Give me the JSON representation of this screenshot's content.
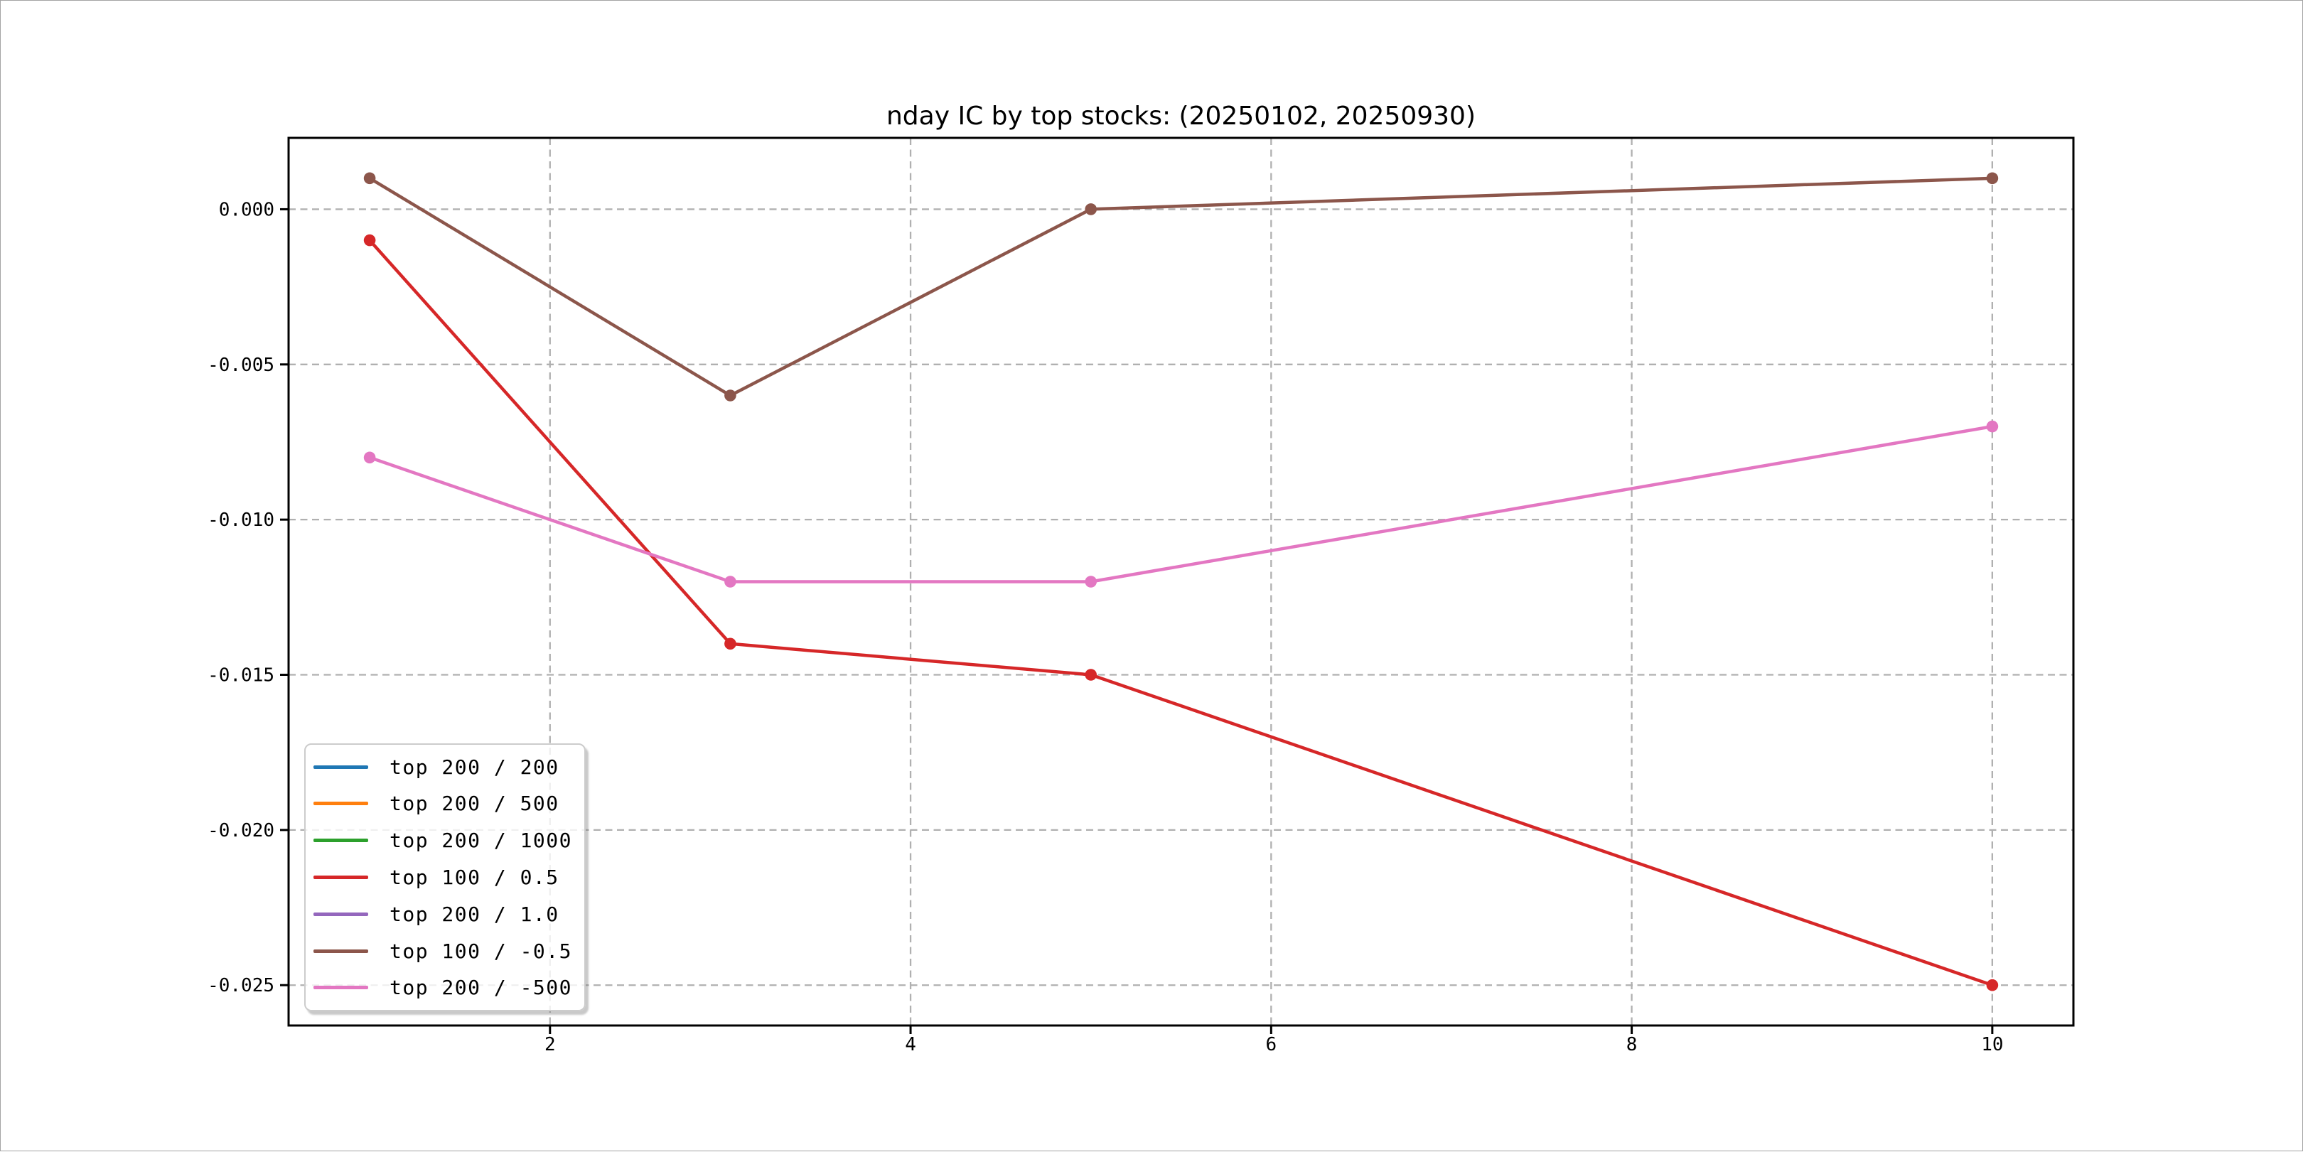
{
  "chart_data": {
    "type": "line",
    "title": "nday IC by top stocks: (20250102, 20250930)",
    "x": [
      1,
      3,
      5,
      10
    ],
    "x_ticks": [
      2,
      4,
      6,
      8,
      10
    ],
    "x_tick_labels": [
      "2",
      "4",
      "6",
      "8",
      "10"
    ],
    "y_ticks": [
      0.0,
      -0.005,
      -0.01,
      -0.015,
      -0.02,
      -0.025
    ],
    "y_tick_labels": [
      "0.000",
      "-0.005",
      "-0.010",
      "-0.015",
      "-0.020",
      "-0.025"
    ],
    "xlim": [
      0.55,
      10.45
    ],
    "ylim": [
      -0.0263,
      0.0023
    ],
    "grid": true,
    "grid_style": "dashed",
    "legend_position": "lower left",
    "marker": "circle",
    "colors": {
      "axis": "#000000",
      "grid": "#b0b0b0",
      "background": "#ffffff",
      "legend_border": "#cccccc",
      "legend_background": "rgba(255,255,255,0.8)"
    },
    "series": [
      {
        "name": "top 200 / 200",
        "color": "#1f77b4",
        "visible": false,
        "values": []
      },
      {
        "name": "top 200 / 500",
        "color": "#ff7f0e",
        "visible": false,
        "values": []
      },
      {
        "name": "top 200 / 1000",
        "color": "#2ca02c",
        "visible": false,
        "values": []
      },
      {
        "name": "top 100 / 0.5",
        "color": "#d62728",
        "visible": true,
        "values": [
          -0.001,
          -0.014,
          -0.015,
          -0.025
        ]
      },
      {
        "name": "top 200 / 1.0",
        "color": "#9467bd",
        "visible": false,
        "values": []
      },
      {
        "name": "top 100 / -0.5",
        "color": "#8c564b",
        "visible": true,
        "values": [
          0.001,
          -0.006,
          0.0,
          0.001
        ]
      },
      {
        "name": "top 200 / -500",
        "color": "#e377c2",
        "visible": true,
        "values": [
          -0.008,
          -0.012,
          -0.012,
          -0.007
        ]
      }
    ]
  }
}
